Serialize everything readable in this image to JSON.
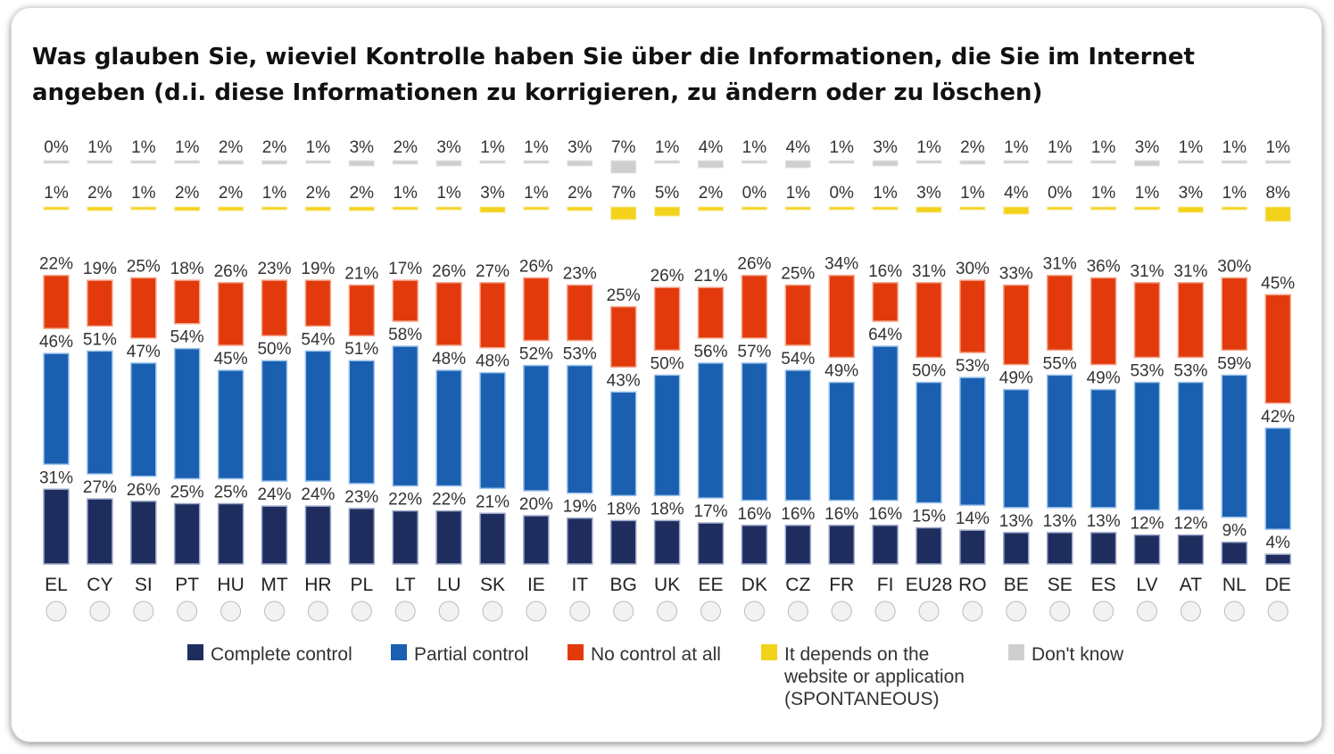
{
  "title": "Was glauben Sie, wieviel Kontrolle haben Sie über die Informationen, die Sie im Internet angeben  (d.i. diese Informationen zu korrigieren, zu ändern oder zu löschen)",
  "colors": {
    "complete": "#1f2d5e",
    "partial": "#1a5fb0",
    "none": "#e23a0c",
    "depends": "#f3d21c",
    "dontknow": "#cfcfcf"
  },
  "chart_data": {
    "type": "bar",
    "layout": "stacked-separated",
    "categories": [
      "EL",
      "CY",
      "SI",
      "PT",
      "HU",
      "MT",
      "HR",
      "PL",
      "LT",
      "LU",
      "SK",
      "IE",
      "IT",
      "BG",
      "UK",
      "EE",
      "DK",
      "CZ",
      "FR",
      "FI",
      "EU28",
      "RO",
      "BE",
      "SE",
      "ES",
      "LV",
      "AT",
      "NL",
      "DE"
    ],
    "series": [
      {
        "name": "Complete control",
        "key": "complete",
        "values": [
          31,
          27,
          26,
          25,
          25,
          24,
          24,
          23,
          22,
          22,
          21,
          20,
          19,
          18,
          18,
          17,
          16,
          16,
          16,
          16,
          15,
          14,
          13,
          13,
          13,
          12,
          12,
          9,
          4
        ]
      },
      {
        "name": "Partial control",
        "key": "partial",
        "values": [
          46,
          51,
          47,
          54,
          45,
          50,
          54,
          51,
          58,
          48,
          48,
          52,
          53,
          43,
          50,
          56,
          57,
          54,
          49,
          64,
          50,
          53,
          49,
          55,
          49,
          53,
          53,
          59,
          42
        ]
      },
      {
        "name": "No control at all",
        "key": "none",
        "values": [
          22,
          19,
          25,
          18,
          26,
          23,
          19,
          21,
          17,
          26,
          27,
          26,
          23,
          25,
          26,
          21,
          26,
          25,
          34,
          16,
          31,
          30,
          33,
          31,
          36,
          31,
          31,
          30,
          45
        ]
      },
      {
        "name": "It depends on the website or application (SPONTANEOUS)",
        "key": "depends",
        "values": [
          1,
          2,
          1,
          2,
          2,
          1,
          2,
          2,
          1,
          1,
          3,
          1,
          2,
          7,
          5,
          2,
          0,
          1,
          0,
          1,
          3,
          1,
          4,
          0,
          1,
          1,
          3,
          1,
          8
        ]
      },
      {
        "name": "Don't know",
        "key": "dontknow",
        "values": [
          0,
          1,
          1,
          1,
          2,
          2,
          1,
          3,
          2,
          3,
          1,
          1,
          3,
          7,
          1,
          4,
          1,
          4,
          1,
          3,
          1,
          2,
          1,
          1,
          1,
          3,
          1,
          1,
          1
        ]
      }
    ],
    "legend": {
      "position": "bottom",
      "items": [
        {
          "key": "complete",
          "lines": [
            "Complete control"
          ]
        },
        {
          "key": "partial",
          "lines": [
            "Partial control"
          ]
        },
        {
          "key": "none",
          "lines": [
            "No control at all"
          ]
        },
        {
          "key": "depends",
          "lines": [
            "It depends on the",
            "website or application",
            "(SPONTANEOUS)"
          ]
        },
        {
          "key": "dontknow",
          "lines": [
            "Don't know"
          ]
        }
      ]
    },
    "flags": [
      "greece-flag-icon",
      "cyprus-flag-icon",
      "slovenia-flag-icon",
      "portugal-flag-icon",
      "hungary-flag-icon",
      "malta-flag-icon",
      "croatia-flag-icon",
      "poland-flag-icon",
      "lithuania-flag-icon",
      "luxembourg-flag-icon",
      "slovakia-flag-icon",
      "ireland-flag-icon",
      "italy-flag-icon",
      "bulgaria-flag-icon",
      "uk-flag-icon",
      "estonia-flag-icon",
      "denmark-flag-icon",
      "czechia-flag-icon",
      "france-flag-icon",
      "finland-flag-icon",
      "eu-flag-icon",
      "romania-flag-icon",
      "belgium-flag-icon",
      "sweden-flag-icon",
      "spain-flag-icon",
      "latvia-flag-icon",
      "austria-flag-icon",
      "netherlands-flag-icon",
      "germany-flag-icon"
    ]
  }
}
